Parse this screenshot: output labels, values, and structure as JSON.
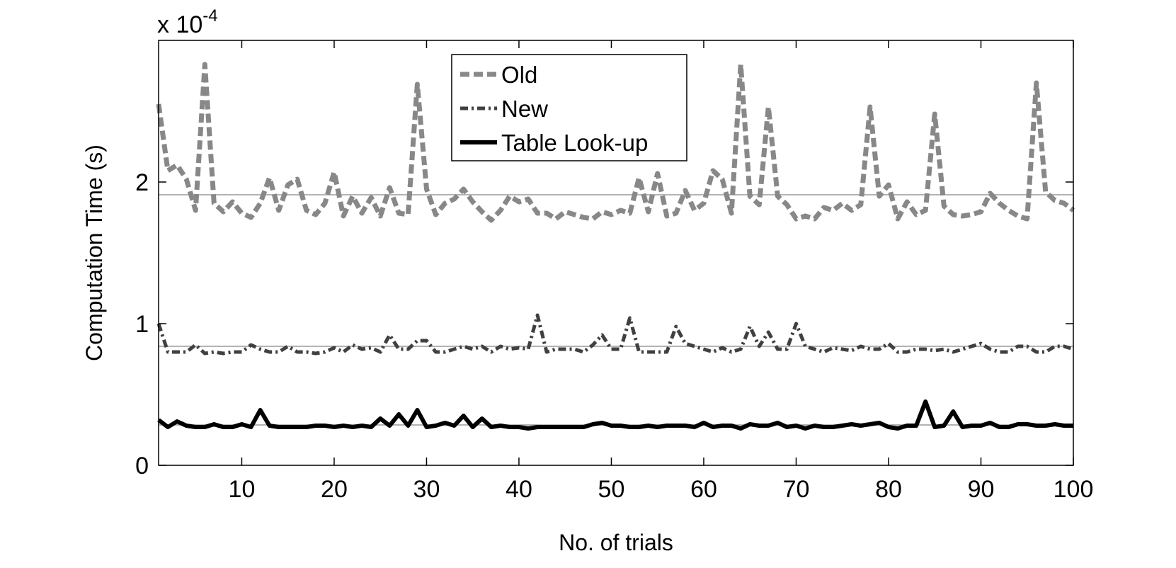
{
  "chart_data": {
    "type": "line",
    "title": "",
    "xlabel": "No. of trials",
    "ylabel": "Computation Time (s)",
    "y_multiplier_text": "x 10",
    "y_multiplier_exp": "-4",
    "xlim": [
      1,
      100
    ],
    "ylim": [
      0,
      3.0
    ],
    "xticks": [
      10,
      20,
      30,
      40,
      50,
      60,
      70,
      80,
      90,
      100
    ],
    "yticks": [
      0,
      1,
      2
    ],
    "ytick_labels": [
      "0",
      "1",
      "2"
    ],
    "grid": false,
    "legend_position": "top-center",
    "x": [
      1,
      2,
      3,
      4,
      5,
      6,
      7,
      8,
      9,
      10,
      11,
      12,
      13,
      14,
      15,
      16,
      17,
      18,
      19,
      20,
      21,
      22,
      23,
      24,
      25,
      26,
      27,
      28,
      29,
      30,
      31,
      32,
      33,
      34,
      35,
      36,
      37,
      38,
      39,
      40,
      41,
      42,
      43,
      44,
      45,
      46,
      47,
      48,
      49,
      50,
      51,
      52,
      53,
      54,
      55,
      56,
      57,
      58,
      59,
      60,
      61,
      62,
      63,
      64,
      65,
      66,
      67,
      68,
      69,
      70,
      71,
      72,
      73,
      74,
      75,
      76,
      77,
      78,
      79,
      80,
      81,
      82,
      83,
      84,
      85,
      86,
      87,
      88,
      89,
      90,
      91,
      92,
      93,
      94,
      95,
      96,
      97,
      98,
      99,
      100
    ],
    "series": [
      {
        "name": "Old",
        "style": "dashed",
        "color": "#888888",
        "values": [
          2.55,
          2.08,
          2.12,
          2.02,
          1.8,
          2.83,
          1.85,
          1.79,
          1.86,
          1.78,
          1.75,
          1.85,
          2.03,
          1.8,
          1.98,
          2.02,
          1.8,
          1.77,
          1.85,
          2.07,
          1.76,
          1.9,
          1.78,
          1.89,
          1.76,
          1.96,
          1.78,
          1.77,
          2.69,
          1.95,
          1.77,
          1.85,
          1.88,
          1.95,
          1.86,
          1.79,
          1.73,
          1.8,
          1.9,
          1.86,
          1.88,
          1.78,
          1.78,
          1.74,
          1.79,
          1.77,
          1.75,
          1.74,
          1.79,
          1.77,
          1.8,
          1.78,
          2.03,
          1.79,
          2.06,
          1.76,
          1.78,
          1.94,
          1.8,
          1.85,
          2.08,
          2.02,
          1.78,
          2.83,
          1.9,
          1.84,
          2.53,
          1.9,
          1.84,
          1.74,
          1.76,
          1.74,
          1.82,
          1.8,
          1.85,
          1.8,
          1.84,
          2.53,
          1.9,
          1.98,
          1.74,
          1.86,
          1.77,
          1.8,
          2.48,
          1.83,
          1.77,
          1.76,
          1.77,
          1.79,
          1.92,
          1.85,
          1.8,
          1.76,
          1.74,
          2.7,
          1.93,
          1.87,
          1.85,
          1.8
        ]
      },
      {
        "name": "New",
        "style": "dash-dot",
        "color": "#404040",
        "values": [
          1.0,
          0.8,
          0.8,
          0.8,
          0.85,
          0.79,
          0.8,
          0.79,
          0.8,
          0.8,
          0.85,
          0.82,
          0.8,
          0.8,
          0.84,
          0.8,
          0.8,
          0.79,
          0.8,
          0.83,
          0.8,
          0.85,
          0.82,
          0.83,
          0.8,
          0.92,
          0.82,
          0.82,
          0.88,
          0.88,
          0.8,
          0.8,
          0.82,
          0.84,
          0.82,
          0.84,
          0.8,
          0.84,
          0.82,
          0.83,
          0.82,
          1.06,
          0.8,
          0.82,
          0.82,
          0.82,
          0.8,
          0.85,
          0.92,
          0.82,
          0.82,
          1.04,
          0.8,
          0.8,
          0.8,
          0.8,
          0.98,
          0.86,
          0.84,
          0.82,
          0.8,
          0.83,
          0.8,
          0.82,
          0.98,
          0.84,
          0.94,
          0.82,
          0.82,
          1.0,
          0.84,
          0.82,
          0.8,
          0.83,
          0.82,
          0.81,
          0.84,
          0.82,
          0.82,
          0.86,
          0.8,
          0.8,
          0.82,
          0.82,
          0.81,
          0.82,
          0.8,
          0.82,
          0.84,
          0.86,
          0.82,
          0.8,
          0.8,
          0.84,
          0.84,
          0.8,
          0.8,
          0.84,
          0.84,
          0.82
        ]
      },
      {
        "name": "Table Look-up",
        "style": "solid",
        "color": "#000000",
        "values": [
          0.32,
          0.27,
          0.31,
          0.28,
          0.27,
          0.27,
          0.29,
          0.27,
          0.27,
          0.29,
          0.27,
          0.39,
          0.28,
          0.27,
          0.27,
          0.27,
          0.27,
          0.28,
          0.28,
          0.27,
          0.28,
          0.27,
          0.28,
          0.27,
          0.33,
          0.28,
          0.36,
          0.28,
          0.39,
          0.27,
          0.28,
          0.3,
          0.28,
          0.35,
          0.27,
          0.33,
          0.27,
          0.28,
          0.27,
          0.27,
          0.26,
          0.27,
          0.27,
          0.27,
          0.27,
          0.27,
          0.27,
          0.29,
          0.3,
          0.28,
          0.28,
          0.27,
          0.27,
          0.28,
          0.27,
          0.28,
          0.28,
          0.28,
          0.27,
          0.3,
          0.27,
          0.28,
          0.28,
          0.26,
          0.29,
          0.28,
          0.28,
          0.3,
          0.27,
          0.28,
          0.26,
          0.28,
          0.27,
          0.27,
          0.28,
          0.29,
          0.28,
          0.29,
          0.3,
          0.27,
          0.26,
          0.28,
          0.28,
          0.45,
          0.27,
          0.28,
          0.38,
          0.27,
          0.28,
          0.28,
          0.3,
          0.27,
          0.27,
          0.29,
          0.29,
          0.28,
          0.28,
          0.29,
          0.28,
          0.28
        ]
      }
    ],
    "reference_lines": [
      {
        "y": 1.91,
        "color": "#9a9a9a"
      },
      {
        "y": 0.84,
        "color": "#9a9a9a"
      },
      {
        "y": 0.285,
        "color": "#9a9a9a"
      }
    ]
  }
}
